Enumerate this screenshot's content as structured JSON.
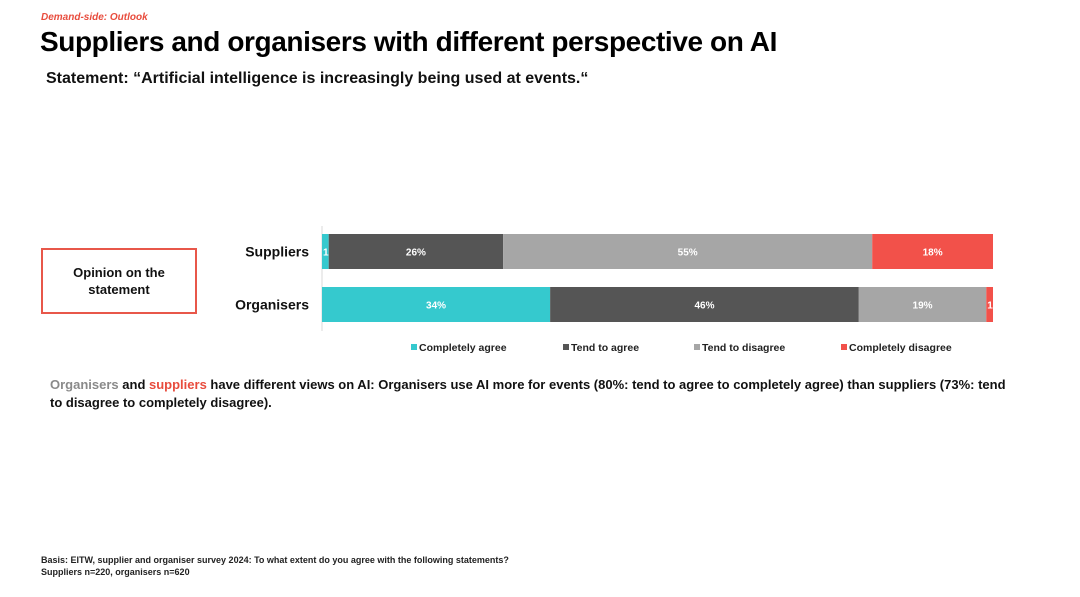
{
  "header": {
    "kicker": "Demand-side: Outlook",
    "title": "Suppliers and organisers with different perspective on AI",
    "subtitle": "Statement: “Artificial intelligence is increasingly being used at events.“"
  },
  "side_box": {
    "label": "Opinion on the statement"
  },
  "colors": {
    "completely_agree": "#35c9ce",
    "tend_to_agree": "#555555",
    "tend_to_disagree": "#a6a6a6",
    "completely_disagree": "#f2514a"
  },
  "chart_data": {
    "type": "bar",
    "orientation": "horizontal",
    "stacked": true,
    "normalized": true,
    "categories": [
      "Suppliers",
      "Organisers"
    ],
    "series": [
      {
        "name": "Completely agree",
        "values": [
          1,
          34
        ],
        "labels": [
          "1%",
          "34%"
        ],
        "color": "#35c9ce"
      },
      {
        "name": "Tend to agree",
        "values": [
          26,
          46
        ],
        "labels": [
          "26%",
          "46%"
        ],
        "color": "#555555"
      },
      {
        "name": "Tend to disagree",
        "values": [
          55,
          19
        ],
        "labels": [
          "55%",
          "19%"
        ],
        "color": "#a6a6a6"
      },
      {
        "name": "Completely disagree",
        "values": [
          18,
          1
        ],
        "labels": [
          "18%",
          "1%"
        ],
        "color": "#f2514a"
      }
    ],
    "xlim": [
      0,
      100
    ],
    "grid": false,
    "legend": "bottom"
  },
  "summary": {
    "organisers_word": "Organisers",
    "and_word": " and ",
    "suppliers_word": "suppliers",
    "rest": " have different views on AI: Organisers use AI more for events (80%: tend to agree to completely agree) than suppliers (73%: tend to disagree to completely disagree)."
  },
  "footer": {
    "basis_line1": "Basis: EITW, supplier and organiser survey 2024: To what extent do you agree with the following statements?",
    "basis_line2": "Suppliers n=220, organisers n=620"
  }
}
